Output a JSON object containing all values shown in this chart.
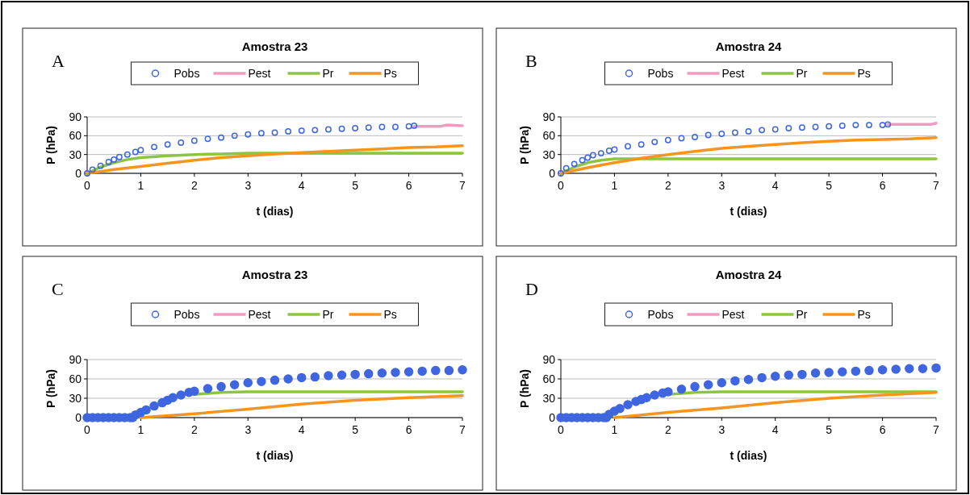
{
  "chart_data": [
    {
      "type": "line",
      "title": "Amostra 23",
      "xlabel": "t (dias)",
      "ylabel": "P (hPa)",
      "annotations": [
        "A"
      ],
      "xlim": [
        0,
        7
      ],
      "xticks": [
        0,
        1,
        2,
        3,
        4,
        5,
        6,
        7
      ],
      "ylim": [
        0,
        90
      ],
      "yticks": [
        0,
        30,
        60,
        90
      ],
      "grid": "y",
      "legend": "top",
      "series": [
        {
          "name": "Pobs",
          "type": "scatter",
          "color": "#3f66e0",
          "x": [
            0,
            0.1,
            0.25,
            0.4,
            0.5,
            0.6,
            0.75,
            0.9,
            1,
            1.25,
            1.5,
            1.75,
            2,
            2.25,
            2.5,
            2.75,
            3,
            3.25,
            3.5,
            3.75,
            4,
            4.25,
            4.5,
            4.75,
            5,
            5.25,
            5.5,
            5.75,
            6,
            6.1
          ],
          "values": [
            0,
            6,
            12,
            18,
            22,
            26,
            30,
            34,
            37,
            42,
            46,
            49,
            52,
            55,
            57,
            60,
            62,
            64,
            65,
            67,
            68,
            69,
            70,
            71,
            72,
            73,
            74,
            74,
            75,
            76
          ]
        },
        {
          "name": "Pest",
          "color": "#f49ac1",
          "x": [
            6.1,
            6.6,
            6.7,
            7
          ],
          "values": [
            75,
            75,
            77,
            76
          ]
        },
        {
          "name": "Pr",
          "color": "#8cc63f",
          "x": [
            0,
            0.25,
            0.5,
            0.75,
            1,
            1.5,
            2,
            2.5,
            3,
            7
          ],
          "values": [
            0,
            10,
            17,
            22,
            25,
            28,
            30,
            31,
            32,
            32
          ]
        },
        {
          "name": "Ps",
          "color": "#f7941d",
          "x": [
            0,
            0.25,
            0.5,
            1,
            1.5,
            2,
            2.5,
            3,
            3.5,
            4,
            4.5,
            5,
            5.5,
            6,
            6.5,
            7
          ],
          "values": [
            0,
            3,
            6,
            11,
            16,
            21,
            25,
            28,
            31,
            33,
            35,
            37,
            39,
            41,
            42,
            44
          ]
        }
      ]
    },
    {
      "type": "line",
      "title": "Amostra 24",
      "xlabel": "t (dias)",
      "ylabel": "P (hPa)",
      "annotations": [
        "B"
      ],
      "xlim": [
        0,
        7
      ],
      "xticks": [
        0,
        1,
        2,
        3,
        4,
        5,
        6,
        7
      ],
      "ylim": [
        0,
        90
      ],
      "yticks": [
        0,
        30,
        60,
        90
      ],
      "grid": "y",
      "legend": "top",
      "series": [
        {
          "name": "Pobs",
          "type": "scatter",
          "color": "#3f66e0",
          "x": [
            0,
            0.1,
            0.25,
            0.4,
            0.5,
            0.6,
            0.75,
            0.9,
            1,
            1.25,
            1.5,
            1.75,
            2,
            2.25,
            2.5,
            2.75,
            3,
            3.25,
            3.5,
            3.75,
            4,
            4.25,
            4.5,
            4.75,
            5,
            5.25,
            5.5,
            5.75,
            6,
            6.1
          ],
          "values": [
            0,
            8,
            15,
            21,
            25,
            29,
            32,
            36,
            38,
            43,
            46,
            50,
            53,
            56,
            58,
            61,
            63,
            65,
            67,
            69,
            70,
            72,
            73,
            74,
            75,
            76,
            77,
            77,
            77,
            78
          ]
        },
        {
          "name": "Pest",
          "color": "#f49ac1",
          "x": [
            6.1,
            6.9,
            7
          ],
          "values": [
            78,
            78,
            80
          ]
        },
        {
          "name": "Pr",
          "color": "#8cc63f",
          "x": [
            0,
            0.25,
            0.5,
            0.75,
            1,
            7
          ],
          "values": [
            0,
            10,
            17,
            21,
            23,
            23
          ]
        },
        {
          "name": "Ps",
          "color": "#f7941d",
          "x": [
            0,
            0.5,
            1,
            1.5,
            2,
            2.5,
            3,
            3.5,
            4,
            4.5,
            5,
            5.5,
            6,
            6.5,
            7
          ],
          "values": [
            0,
            9,
            17,
            24,
            30,
            35,
            40,
            43,
            46,
            49,
            51,
            53,
            54,
            55,
            57
          ]
        }
      ]
    },
    {
      "type": "line",
      "title": "Amostra 23",
      "xlabel": "t (dias)",
      "ylabel": "P (hPa)",
      "annotations": [
        "C"
      ],
      "xlim": [
        0,
        7
      ],
      "xticks": [
        0,
        1,
        2,
        3,
        4,
        5,
        6,
        7
      ],
      "ylim": [
        0,
        90
      ],
      "yticks": [
        0,
        30,
        60,
        90
      ],
      "grid": "y",
      "legend": "top",
      "series": [
        {
          "name": "Pobs",
          "type": "scatter",
          "color": "#3f66e0",
          "x": [
            0,
            0.1,
            0.2,
            0.3,
            0.4,
            0.5,
            0.6,
            0.7,
            0.8,
            0.85,
            0.9,
            1,
            1.1,
            1.25,
            1.4,
            1.5,
            1.6,
            1.75,
            1.9,
            2,
            2.25,
            2.5,
            2.75,
            3,
            3.25,
            3.5,
            3.75,
            4,
            4.25,
            4.5,
            4.75,
            5,
            5.25,
            5.5,
            5.75,
            6,
            6.25,
            6.5,
            6.75,
            7
          ],
          "values": [
            0,
            0,
            0,
            0,
            0,
            0,
            0,
            0,
            0,
            0,
            4,
            8,
            12,
            18,
            23,
            27,
            31,
            35,
            39,
            41,
            45,
            48,
            51,
            54,
            56,
            58,
            60,
            62,
            63,
            65,
            66,
            67,
            68,
            69,
            70,
            71,
            72,
            73,
            73,
            74
          ]
        },
        {
          "name": "Pest",
          "color": "#f49ac1"
        },
        {
          "name": "Pr",
          "color": "#8cc63f",
          "x": [
            2,
            2.5,
            3,
            7
          ],
          "values": [
            36,
            39,
            40,
            40
          ]
        },
        {
          "name": "Ps",
          "color": "#f7941d",
          "x": [
            1,
            2,
            3,
            4,
            5,
            6,
            7
          ],
          "values": [
            0,
            6,
            13,
            21,
            27,
            31,
            34
          ]
        }
      ]
    },
    {
      "type": "line",
      "title": "Amostra 24",
      "xlabel": "t (dias)",
      "ylabel": "P (hPa)",
      "annotations": [
        "D"
      ],
      "xlim": [
        0,
        7
      ],
      "xticks": [
        0,
        1,
        2,
        3,
        4,
        5,
        6,
        7
      ],
      "ylim": [
        0,
        90
      ],
      "yticks": [
        0,
        30,
        60,
        90
      ],
      "grid": "y",
      "legend": "top",
      "series": [
        {
          "name": "Pobs",
          "type": "scatter",
          "color": "#3f66e0",
          "x": [
            0,
            0.1,
            0.2,
            0.3,
            0.4,
            0.5,
            0.6,
            0.7,
            0.8,
            0.85,
            0.9,
            1,
            1.1,
            1.25,
            1.4,
            1.5,
            1.6,
            1.75,
            1.9,
            2,
            2.25,
            2.5,
            2.75,
            3,
            3.25,
            3.5,
            3.75,
            4,
            4.25,
            4.5,
            4.75,
            5,
            5.25,
            5.5,
            5.75,
            6,
            6.25,
            6.5,
            6.75,
            7
          ],
          "values": [
            0,
            0,
            0,
            0,
            0,
            0,
            0,
            0,
            0,
            0,
            5,
            10,
            14,
            20,
            25,
            28,
            31,
            35,
            38,
            40,
            44,
            48,
            51,
            54,
            57,
            59,
            62,
            64,
            66,
            67,
            69,
            70,
            71,
            72,
            73,
            74,
            75,
            76,
            76,
            77
          ]
        },
        {
          "name": "Pest",
          "color": "#f49ac1"
        },
        {
          "name": "Pr",
          "color": "#8cc63f",
          "x": [
            2,
            2.5,
            3,
            7
          ],
          "values": [
            36,
            39,
            40,
            40
          ]
        },
        {
          "name": "Ps",
          "color": "#f7941d",
          "x": [
            1,
            2,
            3,
            4,
            5,
            6,
            7
          ],
          "values": [
            0,
            8,
            15,
            23,
            30,
            35,
            39
          ]
        }
      ]
    }
  ]
}
